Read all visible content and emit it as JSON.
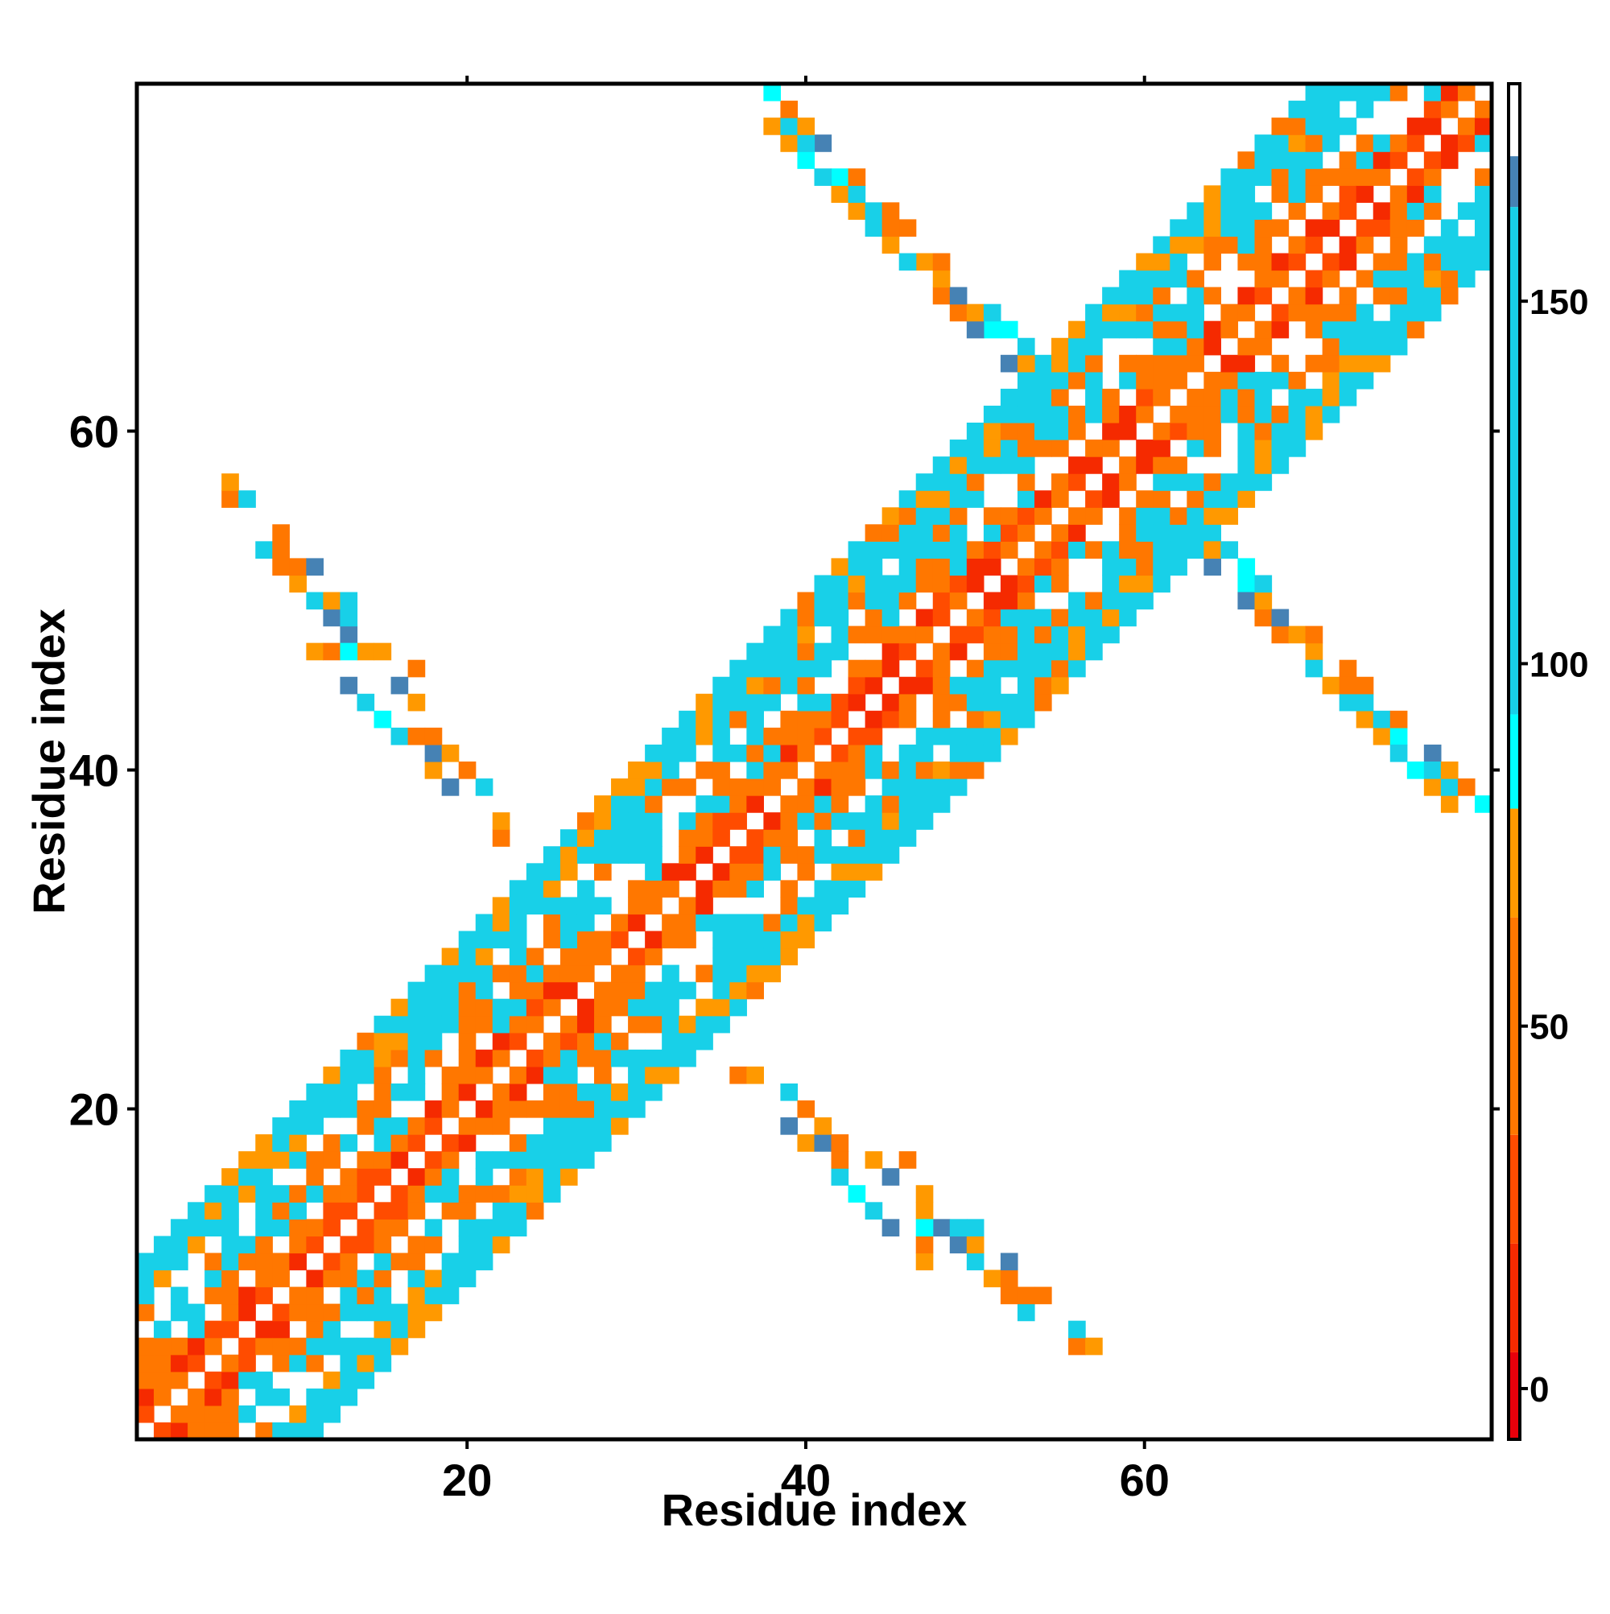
{
  "chart_data": {
    "type": "heatmap",
    "title": "",
    "xlabel": "Residue index",
    "ylabel": "Residue index",
    "x_range": [
      1,
      80
    ],
    "y_range": [
      1,
      80
    ],
    "x_ticks": [
      20,
      40,
      60
    ],
    "y_ticks": [
      20,
      40,
      60
    ],
    "grid": false,
    "colorbar": {
      "position": "right",
      "ticks": [
        0,
        50,
        100,
        150
      ],
      "range": [
        -7,
        180
      ],
      "segments": [
        {
          "from": -7,
          "to": 5,
          "color": "#e8000b"
        },
        {
          "from": 5,
          "to": 20,
          "color": "#f52a00"
        },
        {
          "from": 20,
          "to": 35,
          "color": "#ff4c00"
        },
        {
          "from": 35,
          "to": 65,
          "color": "#ff7700"
        },
        {
          "from": 65,
          "to": 80,
          "color": "#ff9900"
        },
        {
          "from": 80,
          "to": 93,
          "color": "#00ffff"
        },
        {
          "from": 93,
          "to": 163,
          "color": "#18d0e8"
        },
        {
          "from": 163,
          "to": 170,
          "color": "#4682b4"
        },
        {
          "from": 170,
          "to": 180,
          "color": "#ffffff"
        }
      ]
    },
    "values_description_rule": "cell value = contact distance metric; diagonal band |i-j|<=10 plus beta-sheet contacts",
    "band": {
      "half_width": 10
    },
    "contact_strips": [
      {
        "i_start": 6,
        "j_start": 56,
        "direction": "anti",
        "length": 13
      },
      {
        "i_start": 36,
        "j_start": 23,
        "direction": "anti",
        "length": 12
      },
      {
        "i_start": 41,
        "j_start": 76,
        "direction": "anti",
        "length": 20
      },
      {
        "i_start": 65,
        "j_start": 52,
        "direction": "anti",
        "length": 17
      }
    ]
  }
}
